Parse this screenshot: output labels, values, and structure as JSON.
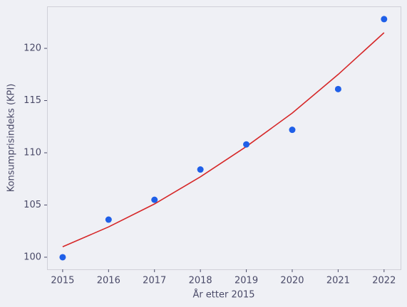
{
  "chart_data": {
    "type": "scatter",
    "x_label": "År etter 2015",
    "y_label": "Konsumprisindeks (KPI)",
    "x": [
      2015,
      2016,
      2017,
      2018,
      2019,
      2020,
      2021,
      2022
    ],
    "series": [
      {
        "kind": "points",
        "color": "#1f5fe8",
        "values": [
          100.0,
          103.6,
          105.5,
          108.4,
          110.8,
          112.2,
          116.1,
          122.8
        ]
      },
      {
        "kind": "line",
        "color": "#d62728",
        "values": [
          101.0,
          102.9,
          105.1,
          107.7,
          110.6,
          113.8,
          117.5,
          121.5
        ]
      }
    ],
    "xlim": [
      2014.66,
      2022.36
    ],
    "xticks": [
      2015,
      2016,
      2017,
      2018,
      2019,
      2020,
      2021,
      2022
    ],
    "ylim": [
      98.84,
      123.95
    ],
    "yticks": [
      100,
      105,
      110,
      115,
      120
    ],
    "grid": false
  }
}
